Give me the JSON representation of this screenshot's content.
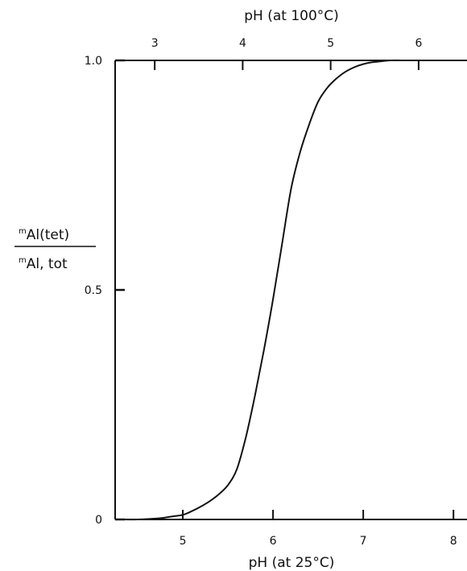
{
  "chart_data": {
    "type": "line",
    "xlabel": "pH (at 25°C)",
    "x2label": "pH (at 100°C)",
    "ylabel": {
      "numerator": "Al(tet)",
      "numerator_prefix": "m",
      "denominator": "Al, tot",
      "denominator_prefix": "m"
    },
    "xlim": [
      4.25,
      8.15
    ],
    "x2lim": [
      2.55,
      6.55
    ],
    "ylim": [
      0,
      1
    ],
    "xticks": [
      5,
      6,
      7,
      8
    ],
    "x2ticks": [
      3,
      4,
      5,
      6
    ],
    "yticks": [
      0,
      0.5,
      1.0
    ],
    "xtick_labels": [
      "5",
      "6",
      "7",
      "8"
    ],
    "x2tick_labels": [
      "3",
      "4",
      "5",
      "6"
    ],
    "ytick_labels": [
      "0",
      "0.5",
      "1.0"
    ],
    "grid": false,
    "series": [
      {
        "x": [
          4.3,
          4.5,
          4.7,
          4.8,
          4.9,
          5.0,
          5.1,
          5.2,
          5.3,
          5.4,
          5.5,
          5.6,
          5.7,
          5.8,
          5.9,
          6.0,
          6.1,
          6.2,
          6.3,
          6.4,
          6.5,
          6.6,
          6.7,
          6.8,
          6.9,
          7.0,
          7.1,
          7.2,
          7.3,
          7.5,
          7.8,
          8.15
        ],
        "y": [
          0.0,
          0.0,
          0.002,
          0.004,
          0.007,
          0.01,
          0.018,
          0.028,
          0.04,
          0.055,
          0.075,
          0.11,
          0.18,
          0.27,
          0.37,
          0.48,
          0.6,
          0.72,
          0.8,
          0.86,
          0.91,
          0.94,
          0.96,
          0.975,
          0.985,
          0.992,
          0.996,
          0.998,
          1.0,
          1.0,
          1.0,
          1.0
        ]
      }
    ]
  }
}
